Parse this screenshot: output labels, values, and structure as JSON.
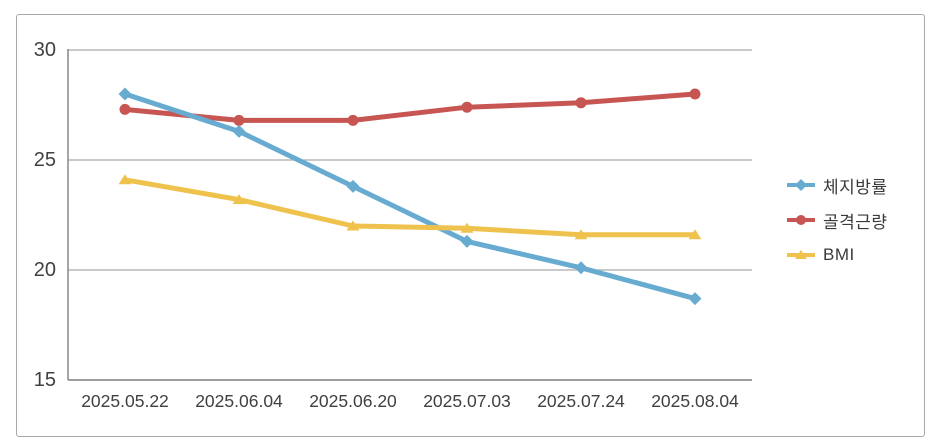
{
  "chart_data": {
    "type": "line",
    "title": "",
    "xlabel": "",
    "ylabel": "",
    "categories": [
      "2025.05.22",
      "2025.06.04",
      "2025.06.20",
      "2025.07.03",
      "2025.07.24",
      "2025.08.04"
    ],
    "series": [
      {
        "id": "body-fat",
        "name": "체지방률",
        "color": "#68ABD1",
        "marker": "diamond",
        "values": [
          28.0,
          26.3,
          23.8,
          21.3,
          20.1,
          18.7
        ]
      },
      {
        "id": "skeletal-muscle",
        "name": "골격근량",
        "color": "#C75552",
        "marker": "circle",
        "values": [
          27.3,
          26.8,
          26.8,
          27.4,
          27.6,
          28.0
        ]
      },
      {
        "id": "bmi",
        "name": "BMI",
        "color": "#EFC24D",
        "marker": "triangle",
        "values": [
          24.1,
          23.2,
          22.0,
          21.9,
          21.6,
          21.6
        ]
      }
    ],
    "ylim": [
      15,
      30
    ],
    "yticks": [
      15,
      20,
      25,
      30
    ],
    "grid": true,
    "legend_position": "right",
    "colors": {
      "gridline": "#ABABAB",
      "axis": "#7F7F7F",
      "tick_text": "#404040",
      "legend_text": "#3A3A3A",
      "frame_border": "#A9A9A9",
      "background": "#FFFFFF"
    }
  }
}
